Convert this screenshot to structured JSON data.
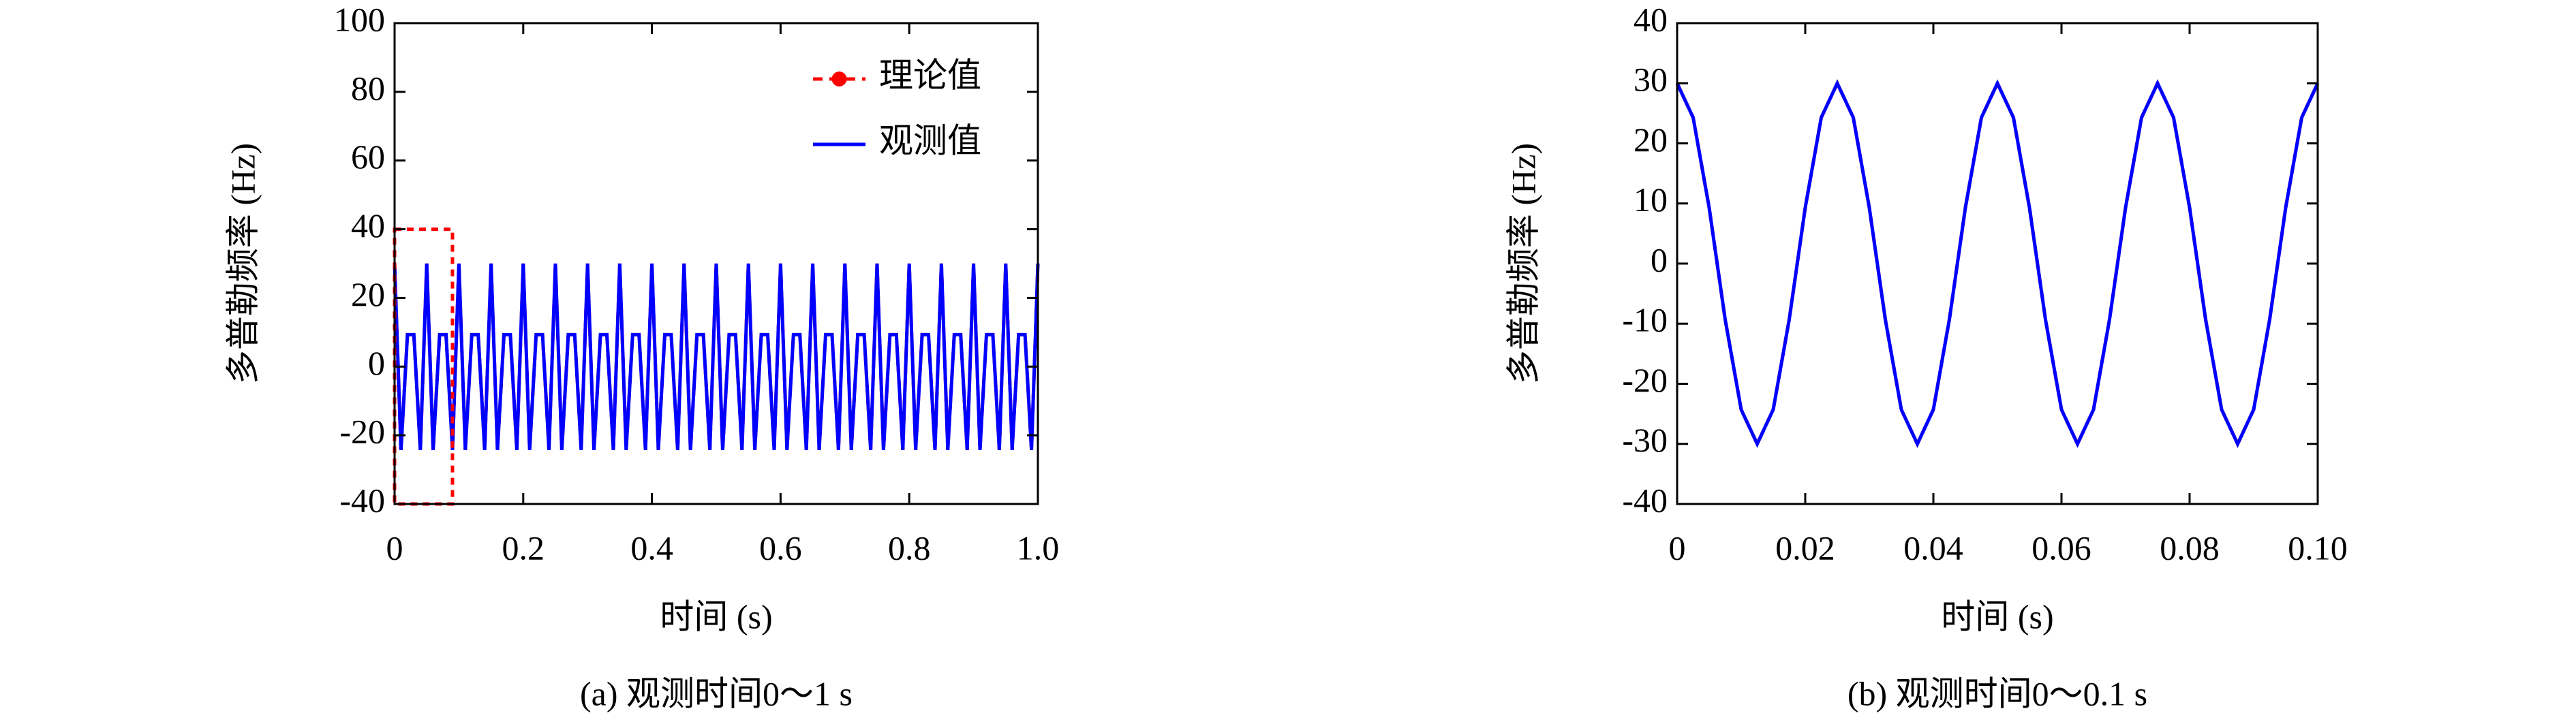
{
  "chart_data": [
    {
      "type": "line",
      "xlabel": "时间 (s)",
      "ylabel": "多普勒频率 (Hz)",
      "caption": "(a) 观测时间0～1 s",
      "xlim": [
        0,
        1
      ],
      "ylim": [
        -40,
        100
      ],
      "xticks": [
        0,
        0.2,
        0.4,
        0.6,
        0.8,
        {
          "value": 1,
          "label": "1.0"
        }
      ],
      "yticks": [
        -40,
        -20,
        0,
        20,
        40,
        60,
        80,
        100
      ],
      "legend": "upper right",
      "highlight": {
        "xlim": [
          0,
          0.09
        ],
        "ylim": [
          -40,
          40
        ],
        "color": "#ff0000"
      },
      "x": [
        0,
        0.01,
        0.02,
        0.03,
        0.04,
        0.05,
        0.06,
        0.07,
        0.08,
        0.09,
        0.1,
        0.11,
        0.12,
        0.13,
        0.14,
        0.15,
        0.16,
        0.17,
        0.18,
        0.19,
        0.2,
        0.21,
        0.22,
        0.23,
        0.24,
        0.25,
        0.26,
        0.27,
        0.28,
        0.29,
        0.3,
        0.31,
        0.32,
        0.33,
        0.34,
        0.35,
        0.36,
        0.37,
        0.38,
        0.39,
        0.4,
        0.41,
        0.42,
        0.43,
        0.44,
        0.45,
        0.46,
        0.47,
        0.48,
        0.49,
        0.5,
        0.51,
        0.52,
        0.53,
        0.54,
        0.55,
        0.56,
        0.57,
        0.58,
        0.59,
        0.6,
        0.61,
        0.62,
        0.63,
        0.64,
        0.65,
        0.66,
        0.67,
        0.68,
        0.69,
        0.7,
        0.71,
        0.72,
        0.73,
        0.74,
        0.75,
        0.76,
        0.77,
        0.78,
        0.79,
        0.8,
        0.81,
        0.82,
        0.83,
        0.84,
        0.85,
        0.86,
        0.87,
        0.88,
        0.89,
        0.9,
        0.91,
        0.92,
        0.93,
        0.94,
        0.95,
        0.96,
        0.97,
        0.98,
        0.99,
        1
      ],
      "series": [
        {
          "name": "理论值",
          "color": "#ff0000",
          "dashed": true,
          "marker": true,
          "values": [
            30,
            -24.3,
            9.3,
            9.3,
            -24.3,
            30,
            -24.3,
            9.3,
            9.3,
            -24.3,
            30,
            -24.3,
            9.3,
            9.3,
            -24.3,
            30,
            -24.3,
            9.3,
            9.3,
            -24.3,
            30,
            -24.3,
            9.3,
            9.3,
            -24.3,
            30,
            -24.3,
            9.3,
            9.3,
            -24.3,
            30,
            -24.3,
            9.3,
            9.3,
            -24.3,
            30,
            -24.3,
            9.3,
            9.3,
            -24.3,
            30,
            -24.3,
            9.3,
            9.3,
            -24.3,
            30,
            -24.3,
            9.3,
            9.3,
            -24.3,
            30,
            -24.3,
            9.3,
            9.3,
            -24.3,
            30,
            -24.3,
            9.3,
            9.3,
            -24.3,
            30,
            -24.3,
            9.3,
            9.3,
            -24.3,
            30,
            -24.3,
            9.3,
            9.3,
            -24.3,
            30,
            -24.3,
            9.3,
            9.3,
            -24.3,
            30,
            -24.3,
            9.3,
            9.3,
            -24.3,
            30,
            -24.3,
            9.3,
            9.3,
            -24.3,
            30,
            -24.3,
            9.3,
            9.3,
            -24.3,
            30,
            -24.3,
            9.3,
            9.3,
            -24.3,
            30,
            -24.3,
            9.3,
            9.3,
            -24.3,
            30
          ]
        },
        {
          "name": "观测值",
          "color": "#0000ff",
          "values": [
            30,
            -24.3,
            9.3,
            9.3,
            -24.3,
            30,
            -24.3,
            9.3,
            9.3,
            -24.3,
            30,
            -24.3,
            9.3,
            9.3,
            -24.3,
            30,
            -24.3,
            9.3,
            9.3,
            -24.3,
            30,
            -24.3,
            9.3,
            9.3,
            -24.3,
            30,
            -24.3,
            9.3,
            9.3,
            -24.3,
            30,
            -24.3,
            9.3,
            9.3,
            -24.3,
            30,
            -24.3,
            9.3,
            9.3,
            -24.3,
            30,
            -24.3,
            9.3,
            9.3,
            -24.3,
            30,
            -24.3,
            9.3,
            9.3,
            -24.3,
            30,
            -24.3,
            9.3,
            9.3,
            -24.3,
            30,
            -24.3,
            9.3,
            9.3,
            -24.3,
            30,
            -24.3,
            9.3,
            9.3,
            -24.3,
            30,
            -24.3,
            9.3,
            9.3,
            -24.3,
            30,
            -24.3,
            9.3,
            9.3,
            -24.3,
            30,
            -24.3,
            9.3,
            9.3,
            -24.3,
            30,
            -24.3,
            9.3,
            9.3,
            -24.3,
            30,
            -24.3,
            9.3,
            9.3,
            -24.3,
            30,
            -24.3,
            9.3,
            9.3,
            -24.3,
            30,
            -24.3,
            9.3,
            9.3,
            -24.3,
            30
          ]
        }
      ]
    },
    {
      "type": "line",
      "xlabel": "时间 (s)",
      "ylabel": "多普勒频率 (Hz)",
      "caption": "(b) 观测时间0～0.1 s",
      "xlim": [
        0,
        0.1
      ],
      "ylim": [
        -40,
        40
      ],
      "xticks": [
        0,
        0.02,
        0.04,
        0.06,
        0.08,
        {
          "value": 0.1,
          "label": "0.10"
        }
      ],
      "yticks": [
        -40,
        -30,
        -20,
        -10,
        0,
        10,
        20,
        30,
        40
      ],
      "x": [
        0,
        0.0025,
        0.005,
        0.0075,
        0.01,
        0.0125,
        0.015,
        0.0175,
        0.02,
        0.0225,
        0.025,
        0.0275,
        0.03,
        0.0325,
        0.035,
        0.0375,
        0.04,
        0.0425,
        0.045,
        0.0475,
        0.05,
        0.0525,
        0.055,
        0.0575,
        0.06,
        0.0625,
        0.065,
        0.0675,
        0.07,
        0.0725,
        0.075,
        0.0775,
        0.08,
        0.0825,
        0.085,
        0.0875,
        0.09,
        0.0925,
        0.095,
        0.0975,
        0.1
      ],
      "series": [
        {
          "color": "#ff0000",
          "dashed": true,
          "values": [
            30,
            24.3,
            9.3,
            -9.3,
            -24.3,
            -30,
            -24.3,
            -9.3,
            9.3,
            24.3,
            30,
            24.3,
            9.3,
            -9.3,
            -24.3,
            -30,
            -24.3,
            -9.3,
            9.3,
            24.3,
            30,
            24.3,
            9.3,
            -9.3,
            -24.3,
            -30,
            -24.3,
            -9.3,
            9.3,
            24.3,
            30,
            24.3,
            9.3,
            -9.3,
            -24.3,
            -30,
            -24.3,
            -9.3,
            9.3,
            24.3,
            30
          ]
        },
        {
          "color": "#0000ff",
          "values": [
            30,
            24.3,
            9.3,
            -9.3,
            -24.3,
            -30,
            -24.3,
            -9.3,
            9.3,
            24.3,
            30,
            24.3,
            9.3,
            -9.3,
            -24.3,
            -30,
            -24.3,
            -9.3,
            9.3,
            24.3,
            30,
            24.3,
            9.3,
            -9.3,
            -24.3,
            -30,
            -24.3,
            -9.3,
            9.3,
            24.3,
            30,
            24.3,
            9.3,
            -9.3,
            -24.3,
            -30,
            -24.3,
            -9.3,
            9.3,
            24.3,
            30
          ]
        }
      ]
    }
  ]
}
